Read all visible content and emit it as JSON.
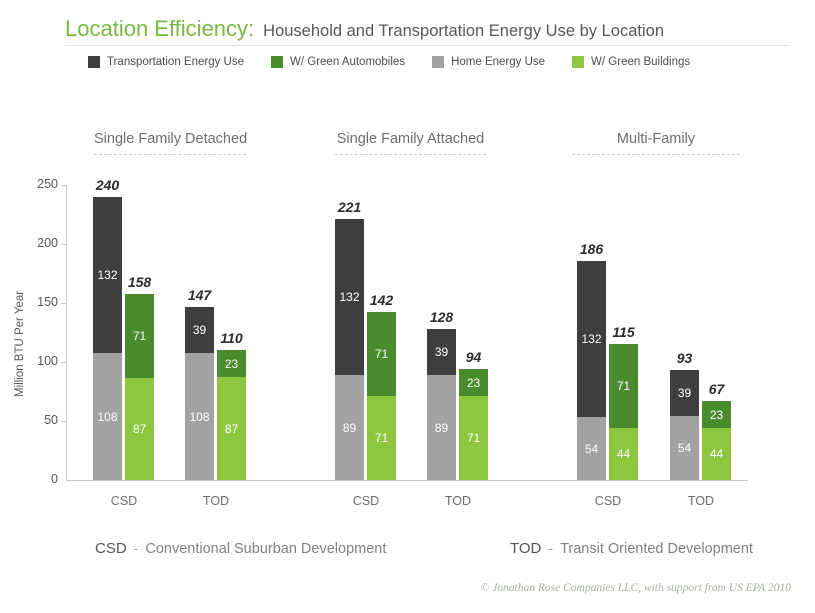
{
  "header": {
    "title": "Location Efficiency:",
    "subtitle": "Household and Transportation Energy Use by Location"
  },
  "legend": [
    {
      "label": "Transportation Energy Use",
      "color": "#3e3e3e"
    },
    {
      "label": "W/ Green Automobiles",
      "color": "#4a8b2d"
    },
    {
      "label": "Home Energy Use",
      "color": "#a2a2a2"
    },
    {
      "label": "W/ Green Buildings",
      "color": "#8dc63f"
    }
  ],
  "chart_data": {
    "type": "bar",
    "stacked": true,
    "title": "Location Efficiency: Household and Transportation Energy Use by Location",
    "xlabel": "",
    "ylabel": "Million BTU Per Year",
    "ylim": [
      0,
      250
    ],
    "yticks": [
      250,
      200,
      150,
      100,
      50,
      0
    ],
    "grid": false,
    "legend_position": "top",
    "groups": [
      {
        "label": "Single Family Detached",
        "columns": [
          {
            "x_label": "CSD",
            "bars": [
              {
                "name": "conventional",
                "total": 240,
                "segments": [
                  {
                    "series": "Transportation Energy Use",
                    "value": 132
                  },
                  {
                    "series": "Home Energy Use",
                    "value": 108
                  }
                ]
              },
              {
                "name": "green",
                "total": 158,
                "segments": [
                  {
                    "series": "W/ Green Automobiles",
                    "value": 71
                  },
                  {
                    "series": "W/ Green Buildings",
                    "value": 87
                  }
                ]
              }
            ]
          },
          {
            "x_label": "TOD",
            "bars": [
              {
                "name": "conventional",
                "total": 147,
                "segments": [
                  {
                    "series": "Transportation Energy Use",
                    "value": 39
                  },
                  {
                    "series": "Home Energy Use",
                    "value": 108
                  }
                ]
              },
              {
                "name": "green",
                "total": 110,
                "segments": [
                  {
                    "series": "W/ Green Automobiles",
                    "value": 23
                  },
                  {
                    "series": "W/ Green Buildings",
                    "value": 87
                  }
                ]
              }
            ]
          }
        ]
      },
      {
        "label": "Single Family Attached",
        "columns": [
          {
            "x_label": "CSD",
            "bars": [
              {
                "name": "conventional",
                "total": 221,
                "segments": [
                  {
                    "series": "Transportation Energy Use",
                    "value": 132
                  },
                  {
                    "series": "Home Energy Use",
                    "value": 89
                  }
                ]
              },
              {
                "name": "green",
                "total": 142,
                "segments": [
                  {
                    "series": "W/ Green Automobiles",
                    "value": 71
                  },
                  {
                    "series": "W/ Green Buildings",
                    "value": 71
                  }
                ]
              }
            ]
          },
          {
            "x_label": "TOD",
            "bars": [
              {
                "name": "conventional",
                "total": 128,
                "segments": [
                  {
                    "series": "Transportation Energy Use",
                    "value": 39
                  },
                  {
                    "series": "Home Energy Use",
                    "value": 89
                  }
                ]
              },
              {
                "name": "green",
                "total": 94,
                "segments": [
                  {
                    "series": "W/ Green Automobiles",
                    "value": 23
                  },
                  {
                    "series": "W/ Green Buildings",
                    "value": 71
                  }
                ]
              }
            ]
          }
        ]
      },
      {
        "label": "Multi-Family",
        "columns": [
          {
            "x_label": "CSD",
            "bars": [
              {
                "name": "conventional",
                "total": 186,
                "segments": [
                  {
                    "series": "Transportation Energy Use",
                    "value": 132
                  },
                  {
                    "series": "Home Energy Use",
                    "value": 54
                  }
                ]
              },
              {
                "name": "green",
                "total": 115,
                "segments": [
                  {
                    "series": "W/ Green Automobiles",
                    "value": 71
                  },
                  {
                    "series": "W/ Green Buildings",
                    "value": 44
                  }
                ]
              }
            ]
          },
          {
            "x_label": "TOD",
            "bars": [
              {
                "name": "conventional",
                "total": 93,
                "segments": [
                  {
                    "series": "Transportation Energy Use",
                    "value": 39
                  },
                  {
                    "series": "Home Energy Use",
                    "value": 54
                  }
                ]
              },
              {
                "name": "green",
                "total": 67,
                "segments": [
                  {
                    "series": "W/ Green Automobiles",
                    "value": 23
                  },
                  {
                    "series": "W/ Green Buildings",
                    "value": 44
                  }
                ]
              }
            ]
          }
        ]
      }
    ]
  },
  "abbreviations": [
    {
      "abbr": "CSD",
      "dash": "-",
      "full": "Conventional Suburban Development"
    },
    {
      "abbr": "TOD",
      "dash": "-",
      "full": "Transit Oriented Development"
    }
  ],
  "footer": {
    "copyright": "© Jonathan Rose Companies LLC, with support from US EPA 2010"
  }
}
